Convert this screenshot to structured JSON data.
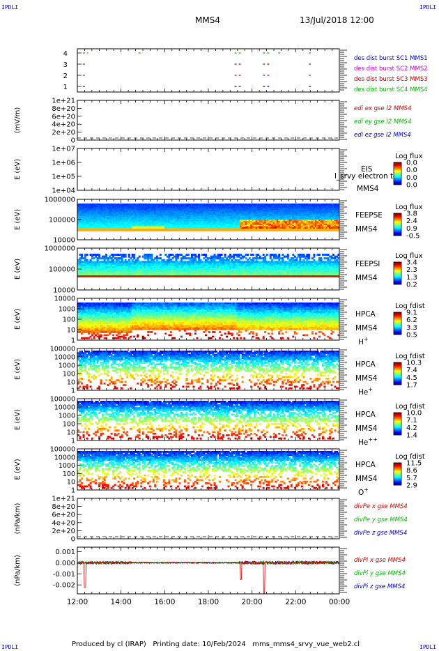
{
  "corner_label": "IPDLI",
  "header": {
    "spacecraft": "MMS4",
    "datetime": "13/Jul/2018 12:00"
  },
  "footer": {
    "text": "Produced by cl (IRAP)   Printing date: 10/Feb/2024   mms_mms4_srvy_vue_web2.cl"
  },
  "time_axis": {
    "ticks": [
      "12:00",
      "14:00",
      "16:00",
      "18:00",
      "20:00",
      "22:00",
      "00:00"
    ]
  },
  "colors": {
    "mms1": "#0000cc",
    "mms2": "#cc00cc",
    "mms3": "#cc0000",
    "mms4": "#00bb00",
    "line": "#000000"
  },
  "chart_data": [
    {
      "type": "scatter",
      "id": "burst",
      "y_ticks": [
        "4",
        "3",
        "2",
        "1"
      ],
      "series": [
        {
          "name": "des dist burst SC1 MMS1",
          "color": "#0000cc",
          "y": 1,
          "intervals": [
            [
              12.25,
              12.35
            ],
            [
              19.2,
              19.5
            ],
            [
              20.5,
              20.8
            ],
            [
              22.6,
              22.7
            ]
          ]
        },
        {
          "name": "des dist burst SC2 MMS2",
          "color": "#cc00cc",
          "y": 2,
          "intervals": [
            [
              12.25,
              12.35
            ],
            [
              19.2,
              19.5
            ],
            [
              20.5,
              20.8
            ],
            [
              22.6,
              22.7
            ]
          ]
        },
        {
          "name": "des dist burst SC3 MMS3",
          "color": "#cc0000",
          "y": 3,
          "intervals": [
            [
              12.25,
              12.35
            ],
            [
              19.2,
              19.5
            ],
            [
              20.5,
              20.8
            ],
            [
              22.6,
              22.7
            ]
          ]
        },
        {
          "name": "des dist burst SC4 MMS4",
          "color": "#00bb00",
          "y": 4,
          "intervals": [
            [
              12.25,
              12.5
            ],
            [
              14.8,
              15.0
            ],
            [
              19.2,
              19.5
            ],
            [
              20.5,
              20.8
            ],
            [
              21.2,
              21.4
            ],
            [
              22.6,
              22.7
            ]
          ]
        }
      ]
    },
    {
      "type": "line",
      "id": "edi",
      "ylabel": "(mV/m)",
      "y_ticks": [
        "1e+21",
        "8e+20",
        "6e+20",
        "4e+20",
        "2e+20",
        "0"
      ],
      "series": [
        {
          "name": "edi ex gse l2 MMS4",
          "color": "#cc0000"
        },
        {
          "name": "edi ey gse l2 MMS4",
          "color": "#00bb00"
        },
        {
          "name": "edi ez gse l2 MMS4",
          "color": "#0000cc"
        }
      ]
    },
    {
      "type": "heatmap",
      "id": "eis",
      "ylabel": "E (eV)",
      "y_ticks": [
        "1e+07",
        "1e+06",
        "1e+05",
        "1e+04"
      ],
      "labels": [
        "EIS",
        "MMS4"
      ],
      "overlay": "l_srvy electron to",
      "colorbar": {
        "title": "Log flux",
        "ticks": [
          "0.0",
          "0.0",
          "0.0",
          "0.0"
        ]
      }
    },
    {
      "type": "heatmap",
      "id": "feepse",
      "ylabel": "E (eV)",
      "y_ticks": [
        "1000000",
        "100000",
        "10000"
      ],
      "labels": [
        "FEEPSE",
        "MMS4"
      ],
      "colorbar": {
        "title": "Log flux",
        "ticks": [
          "3.8",
          "2.4",
          "0.9",
          "-0.5"
        ]
      }
    },
    {
      "type": "heatmap",
      "id": "feepsi",
      "ylabel": "E (eV)",
      "y_ticks": [
        "1000000",
        "100000",
        "10000"
      ],
      "labels": [
        "FEEPSI",
        "MMS4"
      ],
      "colorbar": {
        "title": "Log flux",
        "ticks": [
          "3.4",
          "2.3",
          "1.3",
          "0.2"
        ]
      }
    },
    {
      "type": "heatmap",
      "id": "hpca_h",
      "ylabel": "E (eV)",
      "y_ticks": [
        "10000",
        "1000",
        "100",
        "10",
        "1"
      ],
      "labels": [
        "HPCA",
        "MMS4"
      ],
      "species": {
        "base": "H",
        "sup": "+"
      },
      "colorbar": {
        "title": "Log fdist",
        "ticks": [
          "9.1",
          "6.2",
          "3.3",
          "0.5"
        ]
      }
    },
    {
      "type": "heatmap",
      "id": "hpca_he",
      "ylabel": "E (eV)",
      "y_ticks": [
        "100000",
        "10000",
        "1000",
        "100",
        "10",
        "1"
      ],
      "labels": [
        "HPCA",
        "MMS4"
      ],
      "species": {
        "base": "He",
        "sup": "+"
      },
      "colorbar": {
        "title": "Log fdist",
        "ticks": [
          "10.3",
          "7.4",
          "4.5",
          "1.7"
        ]
      }
    },
    {
      "type": "heatmap",
      "id": "hpca_hepp",
      "ylabel": "E (eV)",
      "y_ticks": [
        "100000",
        "10000",
        "1000",
        "100",
        "10",
        "1"
      ],
      "labels": [
        "HPCA",
        "MMS4"
      ],
      "species": {
        "base": "He",
        "sup": "++"
      },
      "colorbar": {
        "title": "Log fdist",
        "ticks": [
          "10.0",
          "7.1",
          "4.2",
          "1.4"
        ]
      }
    },
    {
      "type": "heatmap",
      "id": "hpca_o",
      "ylabel": "E (eV)",
      "y_ticks": [
        "100000",
        "10000",
        "1000",
        "100",
        "10",
        "1"
      ],
      "labels": [
        "HPCA",
        "MMS4"
      ],
      "species": {
        "base": "O",
        "sup": "+"
      },
      "colorbar": {
        "title": "Log fdist",
        "ticks": [
          "11.5",
          "8.6",
          "5.7",
          "2.9"
        ]
      }
    },
    {
      "type": "line",
      "id": "divpe",
      "ylabel": "(nPa/km)",
      "y_ticks": [
        "1e+21",
        "8e+20",
        "6e+20",
        "4e+20",
        "2e+20",
        "0"
      ],
      "series": [
        {
          "name": "divPe x gse MMS4",
          "color": "#cc0000"
        },
        {
          "name": "divPe y gse MMS4",
          "color": "#00bb00"
        },
        {
          "name": "divPe z gse MMS4",
          "color": "#0000cc"
        }
      ]
    },
    {
      "type": "line",
      "id": "divpi",
      "ylabel": "(nPa/km)",
      "y_ticks": [
        "0.001",
        "0.000",
        "-0.001",
        "-0.002"
      ],
      "ylim": [
        -0.0028,
        0.0014
      ],
      "series": [
        {
          "name": "divPi x gse MMS4",
          "color": "#cc0000"
        },
        {
          "name": "divPi y gse MMS4",
          "color": "#00bb00"
        },
        {
          "name": "divPi z gse MMS4",
          "color": "#0000cc"
        }
      ]
    }
  ]
}
